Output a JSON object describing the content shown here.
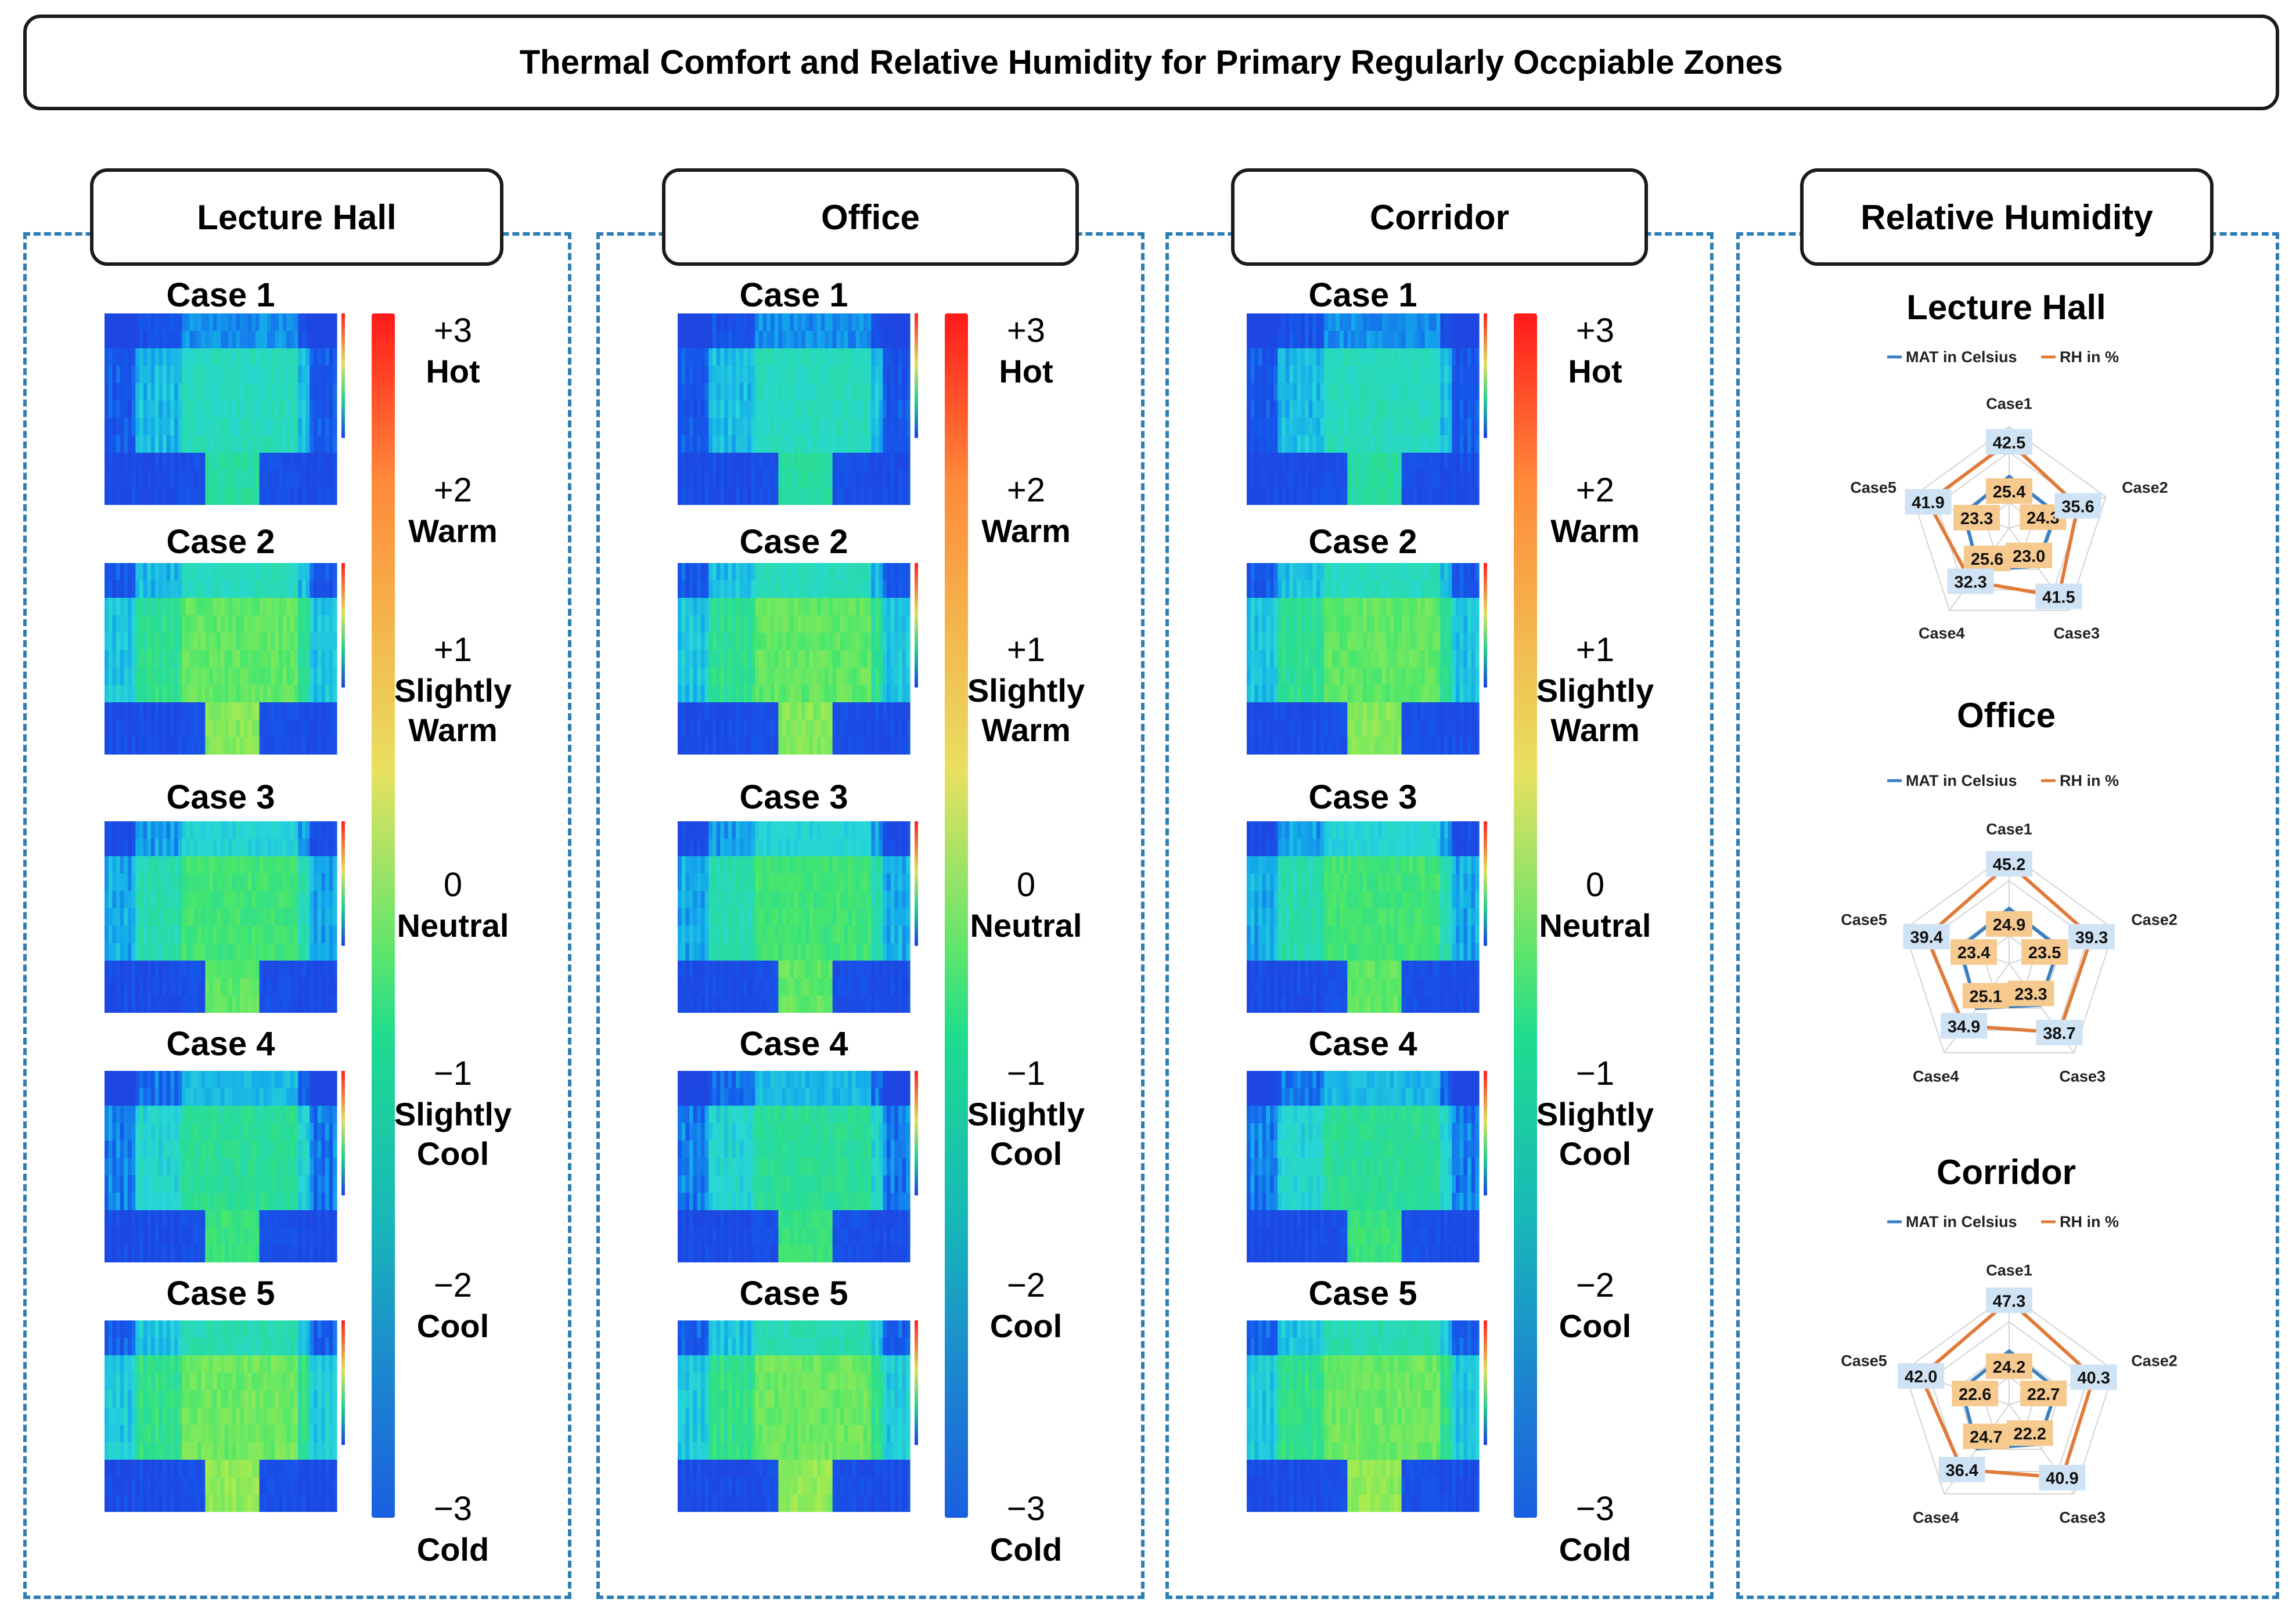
{
  "title": "Thermal Comfort and Relative Humidity for Primary Regularly Occpiable Zones",
  "zones": [
    {
      "label": "Lecture Hall",
      "cases": [
        "Case 1",
        "Case 2",
        "Case 3",
        "Case 4",
        "Case 5"
      ]
    },
    {
      "label": "Office",
      "cases": [
        "Case 1",
        "Case 2",
        "Case 3",
        "Case 4",
        "Case 5"
      ]
    },
    {
      "label": "Corridor",
      "cases": [
        "Case 1",
        "Case 2",
        "Case 3",
        "Case 4",
        "Case 5"
      ]
    }
  ],
  "colorbar": {
    "ticks": [
      {
        "value": "+3",
        "label": "Hot"
      },
      {
        "value": "+2",
        "label": "Warm"
      },
      {
        "value": "+1",
        "label": "Slightly Warm"
      },
      {
        "value": "0",
        "label": "Neutral"
      },
      {
        "value": "−1",
        "label": "Slightly Cool"
      },
      {
        "value": "−2",
        "label": "Cool"
      },
      {
        "value": "−3",
        "label": "Cold"
      }
    ],
    "colors": [
      "#ff1a1a",
      "#ff8a3a",
      "#e8e060",
      "#5ee56c",
      "#1fdc8e",
      "#18b8b8",
      "#1d7fd2",
      "#1a60e0"
    ]
  },
  "rh_panel": {
    "label": "Relative Humidity"
  },
  "chart_data": [
    {
      "type": "radar",
      "title": "Lecture Hall",
      "categories": [
        "Case1",
        "Case2",
        "Case3",
        "Case4",
        "Case5"
      ],
      "series": [
        {
          "name": "MAT in Celsius",
          "color": "#3a7fc0",
          "values": [
            25.4,
            24.3,
            23.0,
            25.6,
            23.3
          ]
        },
        {
          "name": "RH in %",
          "color": "#e07b3a",
          "values": [
            42.5,
            35.6,
            41.5,
            32.3,
            41.9
          ]
        }
      ],
      "rlim": [
        0,
        50
      ]
    },
    {
      "type": "radar",
      "title": "Office",
      "categories": [
        "Case1",
        "Case2",
        "Case3",
        "Case4",
        "Case5"
      ],
      "series": [
        {
          "name": "MAT in Celsius",
          "color": "#3a7fc0",
          "values": [
            24.9,
            23.5,
            23.3,
            25.1,
            23.4
          ]
        },
        {
          "name": "RH in %",
          "color": "#e07b3a",
          "values": [
            45.2,
            39.3,
            38.7,
            34.9,
            39.4
          ]
        }
      ],
      "rlim": [
        0,
        50
      ]
    },
    {
      "type": "radar",
      "title": "Corridor",
      "categories": [
        "Case1",
        "Case2",
        "Case3",
        "Case4",
        "Case5"
      ],
      "series": [
        {
          "name": "MAT in Celsius",
          "color": "#3a7fc0",
          "values": [
            24.2,
            22.7,
            22.2,
            24.7,
            22.6
          ]
        },
        {
          "name": "RH in %",
          "color": "#e07b3a",
          "values": [
            47.3,
            40.3,
            40.9,
            36.4,
            42.0
          ]
        }
      ],
      "rlim": [
        0,
        50
      ]
    }
  ]
}
